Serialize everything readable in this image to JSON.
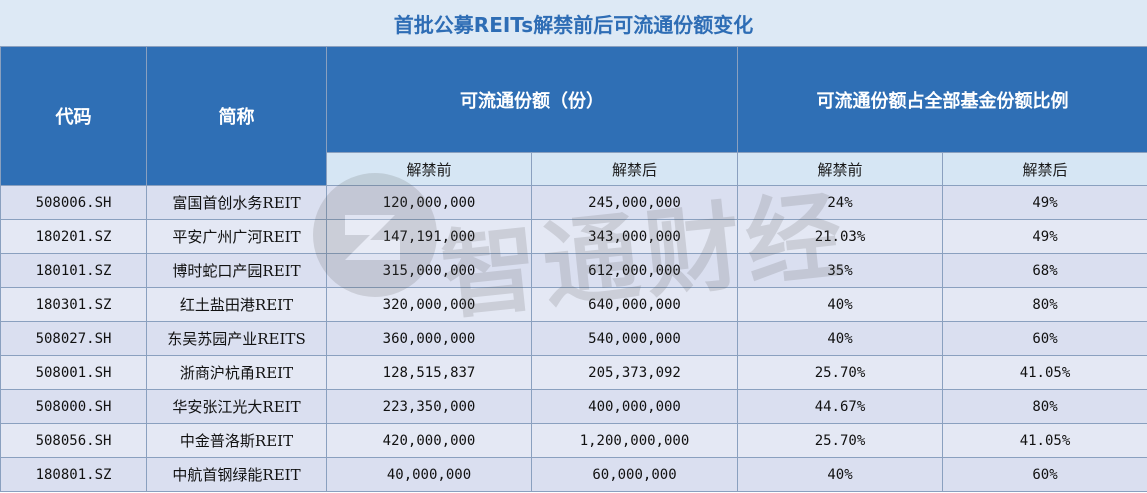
{
  "chart_data": {
    "type": "table",
    "title": "首批公募REITs解禁前后可流通份额变化",
    "headers": {
      "code": "代码",
      "name": "简称",
      "shares_group": "可流通份额（份）",
      "ratio_group": "可流通份额占全部基金份额比例",
      "before": "解禁前",
      "after": "解禁后"
    },
    "rows": [
      {
        "code": "508006.SH",
        "name": "富国首创水务REIT",
        "shares_before": "120,000,000",
        "shares_after": "245,000,000",
        "ratio_before": "24%",
        "ratio_after": "49%"
      },
      {
        "code": "180201.SZ",
        "name": "平安广州广河REIT",
        "shares_before": "147,191,000",
        "shares_after": "343,000,000",
        "ratio_before": "21.03%",
        "ratio_after": "49%"
      },
      {
        "code": "180101.SZ",
        "name": "博时蛇口产园REIT",
        "shares_before": "315,000,000",
        "shares_after": "612,000,000",
        "ratio_before": "35%",
        "ratio_after": "68%"
      },
      {
        "code": "180301.SZ",
        "name": "红土盐田港REIT",
        "shares_before": "320,000,000",
        "shares_after": "640,000,000",
        "ratio_before": "40%",
        "ratio_after": "80%"
      },
      {
        "code": "508027.SH",
        "name": "东吴苏园产业REITS",
        "shares_before": "360,000,000",
        "shares_after": "540,000,000",
        "ratio_before": "40%",
        "ratio_after": "60%"
      },
      {
        "code": "508001.SH",
        "name": "浙商沪杭甬REIT",
        "shares_before": "128,515,837",
        "shares_after": "205,373,092",
        "ratio_before": "25.70%",
        "ratio_after": "41.05%"
      },
      {
        "code": "508000.SH",
        "name": "华安张江光大REIT",
        "shares_before": "223,350,000",
        "shares_after": "400,000,000",
        "ratio_before": "44.67%",
        "ratio_after": "80%"
      },
      {
        "code": "508056.SH",
        "name": "中金普洛斯REIT",
        "shares_before": "420,000,000",
        "shares_after": "1,200,000,000",
        "ratio_before": "25.70%",
        "ratio_after": "41.05%"
      },
      {
        "code": "180801.SZ",
        "name": "中航首钢绿能REIT",
        "shares_before": "40,000,000",
        "shares_after": "60,000,000",
        "ratio_before": "40%",
        "ratio_after": "60%"
      }
    ]
  },
  "watermark": {
    "text": "智通财经"
  },
  "colors": {
    "header": "#2f6fb5",
    "subheader": "#d6e6f4",
    "title_text": "#2e6db5",
    "row_odd": "#dadff0",
    "row_even": "#e4e8f4"
  }
}
